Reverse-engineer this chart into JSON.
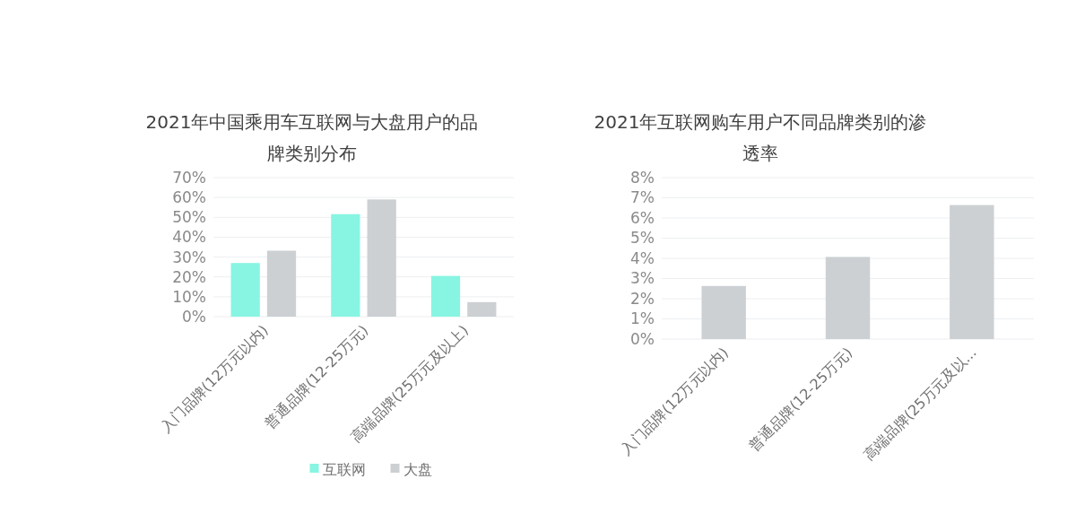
{
  "chart_data": [
    {
      "type": "bar",
      "title": "2021年中国乘用车互联网与大盘用户的品牌类别分布",
      "categories": [
        "入门品牌(12万元以内)",
        "普通品牌(12-25万元)",
        "高端品牌(25万元及以上)"
      ],
      "series": [
        {
          "name": "互联网",
          "color": "#87f5e2",
          "values": [
            27,
            51.6,
            20.5
          ]
        },
        {
          "name": "大盘",
          "color": "#cdd0d3",
          "values": [
            33.2,
            59,
            7.3
          ]
        }
      ],
      "ylim": [
        0,
        70
      ],
      "yticks": [
        {
          "value": 0,
          "label": "0%"
        },
        {
          "value": 10,
          "label": "10%"
        },
        {
          "value": 20,
          "label": "20%"
        },
        {
          "value": 30,
          "label": "30%"
        },
        {
          "value": 40,
          "label": "40%"
        },
        {
          "value": 50,
          "label": "50%"
        },
        {
          "value": 60,
          "label": "60%"
        },
        {
          "value": 70,
          "label": "70%"
        }
      ],
      "grid": "y",
      "legend": "bottom"
    },
    {
      "type": "bar",
      "title": "2021年互联网购车用户不同品牌类别的渗透率",
      "categories": [
        "入门品牌(12万元以内)",
        "普通品牌(12-25万元)",
        "高端品牌(25万元及以..."
      ],
      "series": [
        {
          "color": "#cdd0d3",
          "values": [
            2.63,
            4.07,
            6.64
          ]
        }
      ],
      "ylim": [
        0,
        8
      ],
      "yticks": [
        {
          "value": 0,
          "label": "0%"
        },
        {
          "value": 1,
          "label": "1%"
        },
        {
          "value": 2,
          "label": "2%"
        },
        {
          "value": 3,
          "label": "3%"
        },
        {
          "value": 4,
          "label": "4%"
        },
        {
          "value": 5,
          "label": "5%"
        },
        {
          "value": 6,
          "label": "6%"
        },
        {
          "value": 7,
          "label": "7%"
        },
        {
          "value": 8,
          "label": "8%"
        }
      ],
      "grid": "y"
    }
  ]
}
